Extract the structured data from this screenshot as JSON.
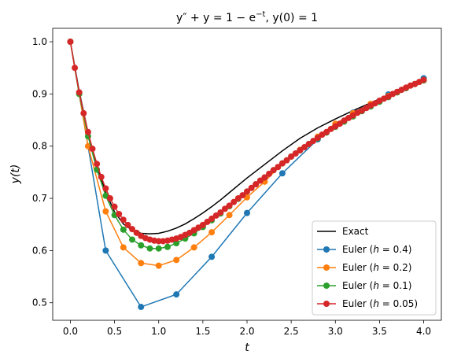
{
  "chart_data": {
    "type": "line",
    "title_parts": {
      "lhs": "y″ + y = 1 − e",
      "sup": "−t",
      "sep": ", ",
      "ic": "y(0) = 1"
    },
    "xlabel": "t",
    "ylabel": "y(t)",
    "xlim": [
      -0.2,
      4.2
    ],
    "ylim": [
      0.4664,
      1.0257
    ],
    "xticks": [
      0.0,
      0.5,
      1.0,
      1.5,
      2.0,
      2.5,
      3.0,
      3.5,
      4.0
    ],
    "xtick_labels": [
      "0.0",
      "0.5",
      "1.0",
      "1.5",
      "2.0",
      "2.5",
      "3.0",
      "3.5",
      "4.0"
    ],
    "yticks": [
      0.5,
      0.6,
      0.7,
      0.8,
      0.9,
      1.0
    ],
    "ytick_labels": [
      "0.5",
      "0.6",
      "0.7",
      "0.8",
      "0.9",
      "1.0"
    ],
    "legend_position": "lower-right",
    "grid": false,
    "series": [
      {
        "name": "Exact",
        "h": null,
        "color": "#000000",
        "marker": false,
        "x": [
          0,
          0.1,
          0.2,
          0.3,
          0.4,
          0.5,
          0.6,
          0.7,
          0.8,
          0.9,
          1.0,
          1.1,
          1.2,
          1.3,
          1.4,
          1.5,
          1.6,
          1.7,
          1.8,
          1.9,
          2.0,
          2.2,
          2.4,
          2.6,
          2.8,
          3.0,
          3.2,
          3.4,
          3.6,
          3.8,
          4.0
        ],
        "y": [
          1.0,
          0.905,
          0.826,
          0.762,
          0.712,
          0.674,
          0.651,
          0.639,
          0.633,
          0.632,
          0.633,
          0.637,
          0.643,
          0.651,
          0.661,
          0.672,
          0.684,
          0.697,
          0.711,
          0.725,
          0.739,
          0.765,
          0.791,
          0.815,
          0.835,
          0.852,
          0.868,
          0.883,
          0.898,
          0.912,
          0.926
        ]
      },
      {
        "name": "Euler (h = 0.4)",
        "h": "0.4",
        "color": "#1f77b4",
        "marker": true,
        "x": [
          0.0,
          0.4,
          0.8,
          1.2,
          1.6,
          2.0,
          2.4,
          2.8,
          3.2,
          3.6,
          4.0
        ],
        "y": [
          1.0,
          0.6,
          0.492,
          0.516,
          0.588,
          0.672,
          0.748,
          0.813,
          0.864,
          0.899,
          0.93
        ]
      },
      {
        "name": "Euler (h = 0.2)",
        "h": "0.2",
        "color": "#ff7f0e",
        "marker": true,
        "x": [
          0.0,
          0.2,
          0.4,
          0.6,
          0.8,
          1.0,
          1.2,
          1.4,
          1.6,
          1.8,
          2.0,
          2.2,
          2.4,
          2.6,
          2.8,
          3.0,
          3.2,
          3.4,
          3.6,
          3.8,
          4.0
        ],
        "y": [
          1.0,
          0.8,
          0.675,
          0.606,
          0.576,
          0.571,
          0.582,
          0.606,
          0.635,
          0.668,
          0.702,
          0.732,
          0.767,
          0.793,
          0.818,
          0.843,
          0.863,
          0.881,
          0.896,
          0.912,
          0.926
        ]
      },
      {
        "name": "Euler (h = 0.1)",
        "h": "0.1",
        "color": "#2ca02c",
        "marker": true,
        "x": [
          0.0,
          0.1,
          0.2,
          0.3,
          0.4,
          0.5,
          0.6,
          0.7,
          0.8,
          0.9,
          1.0,
          1.1,
          1.2,
          1.3,
          1.4,
          1.5,
          1.6,
          1.7,
          1.8,
          1.9,
          2.0,
          2.1,
          2.2,
          2.3,
          2.4,
          2.5,
          2.6,
          2.7,
          2.8,
          2.9,
          3.0,
          3.1,
          3.2,
          3.3,
          3.4,
          3.5,
          3.6,
          3.7,
          3.8,
          3.9,
          4.0
        ],
        "y": [
          1.0,
          0.9,
          0.819,
          0.755,
          0.705,
          0.668,
          0.64,
          0.621,
          0.61,
          0.604,
          0.604,
          0.607,
          0.614,
          0.623,
          0.633,
          0.645,
          0.658,
          0.671,
          0.685,
          0.699,
          0.713,
          0.727,
          0.74,
          0.754,
          0.767,
          0.78,
          0.792,
          0.804,
          0.815,
          0.826,
          0.837,
          0.847,
          0.857,
          0.867,
          0.876,
          0.885,
          0.894,
          0.903,
          0.911,
          0.919,
          0.926
        ]
      },
      {
        "name": "Euler (h = 0.05)",
        "h": "0.05",
        "color": "#d62728",
        "marker": true,
        "x": [
          0.0,
          0.05,
          0.1,
          0.15,
          0.2,
          0.25,
          0.3,
          0.35,
          0.4,
          0.45,
          0.5,
          0.55,
          0.6,
          0.65,
          0.7,
          0.75,
          0.8,
          0.85,
          0.9,
          0.95,
          1.0,
          1.05,
          1.1,
          1.15,
          1.2,
          1.25,
          1.3,
          1.35,
          1.4,
          1.45,
          1.5,
          1.55,
          1.6,
          1.65,
          1.7,
          1.75,
          1.8,
          1.85,
          1.9,
          1.95,
          2.0,
          2.05,
          2.1,
          2.15,
          2.2,
          2.25,
          2.3,
          2.35,
          2.4,
          2.45,
          2.5,
          2.55,
          2.6,
          2.65,
          2.7,
          2.75,
          2.8,
          2.85,
          2.9,
          2.95,
          3.0,
          3.05,
          3.1,
          3.15,
          3.2,
          3.25,
          3.3,
          3.35,
          3.4,
          3.45,
          3.5,
          3.55,
          3.6,
          3.65,
          3.7,
          3.75,
          3.8,
          3.85,
          3.9,
          3.95,
          4.0
        ],
        "y": [
          1.0,
          0.95,
          0.903,
          0.863,
          0.827,
          0.795,
          0.766,
          0.741,
          0.719,
          0.7,
          0.684,
          0.67,
          0.659,
          0.649,
          0.641,
          0.634,
          0.628,
          0.624,
          0.621,
          0.619,
          0.618,
          0.618,
          0.619,
          0.621,
          0.623,
          0.626,
          0.63,
          0.634,
          0.639,
          0.644,
          0.649,
          0.655,
          0.661,
          0.667,
          0.673,
          0.68,
          0.686,
          0.693,
          0.7,
          0.706,
          0.713,
          0.72,
          0.727,
          0.734,
          0.74,
          0.747,
          0.754,
          0.76,
          0.767,
          0.773,
          0.78,
          0.786,
          0.792,
          0.798,
          0.804,
          0.81,
          0.816,
          0.822,
          0.827,
          0.833,
          0.838,
          0.843,
          0.849,
          0.854,
          0.859,
          0.864,
          0.868,
          0.873,
          0.878,
          0.882,
          0.887,
          0.891,
          0.895,
          0.9,
          0.904,
          0.908,
          0.912,
          0.916,
          0.919,
          0.923,
          0.927
        ]
      }
    ]
  }
}
